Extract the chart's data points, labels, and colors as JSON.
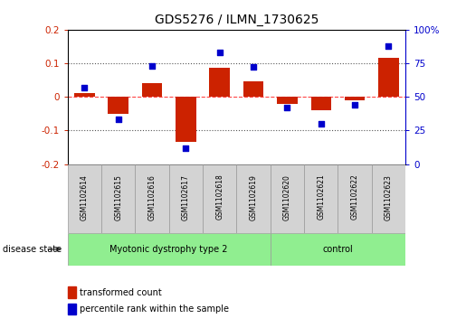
{
  "title": "GDS5276 / ILMN_1730625",
  "samples": [
    "GSM1102614",
    "GSM1102615",
    "GSM1102616",
    "GSM1102617",
    "GSM1102618",
    "GSM1102619",
    "GSM1102620",
    "GSM1102621",
    "GSM1102622",
    "GSM1102623"
  ],
  "red_bars": [
    0.01,
    -0.05,
    0.04,
    -0.135,
    0.085,
    0.045,
    -0.02,
    -0.04,
    -0.01,
    0.115
  ],
  "blue_dots": [
    0.57,
    0.33,
    0.73,
    0.12,
    0.83,
    0.72,
    0.42,
    0.3,
    0.44,
    0.88
  ],
  "groups": [
    {
      "label": "Myotonic dystrophy type 2",
      "start": 0,
      "end": 6,
      "color": "#90EE90"
    },
    {
      "label": "control",
      "start": 6,
      "end": 10,
      "color": "#90EE90"
    }
  ],
  "ylim_left": [
    -0.2,
    0.2
  ],
  "ylim_right": [
    0,
    1.0
  ],
  "yticks_left": [
    -0.2,
    -0.1,
    0.0,
    0.1,
    0.2
  ],
  "yticks_right": [
    0,
    0.25,
    0.5,
    0.75,
    1.0
  ],
  "ytick_labels_right": [
    "0",
    "25",
    "50",
    "75",
    "100%"
  ],
  "ytick_labels_left": [
    "-0.2",
    "-0.1",
    "0",
    "0.1",
    "0.2"
  ],
  "red_color": "#CC2200",
  "blue_color": "#0000CC",
  "hline_color": "#FF4444",
  "dotline_color": "#555555",
  "bg_plot": "#FFFFFF",
  "bg_label": "#D3D3D3",
  "disease_state_label": "disease state",
  "legend_red": "transformed count",
  "legend_blue": "percentile rank within the sample",
  "fig_width": 5.15,
  "fig_height": 3.63,
  "dpi": 100
}
